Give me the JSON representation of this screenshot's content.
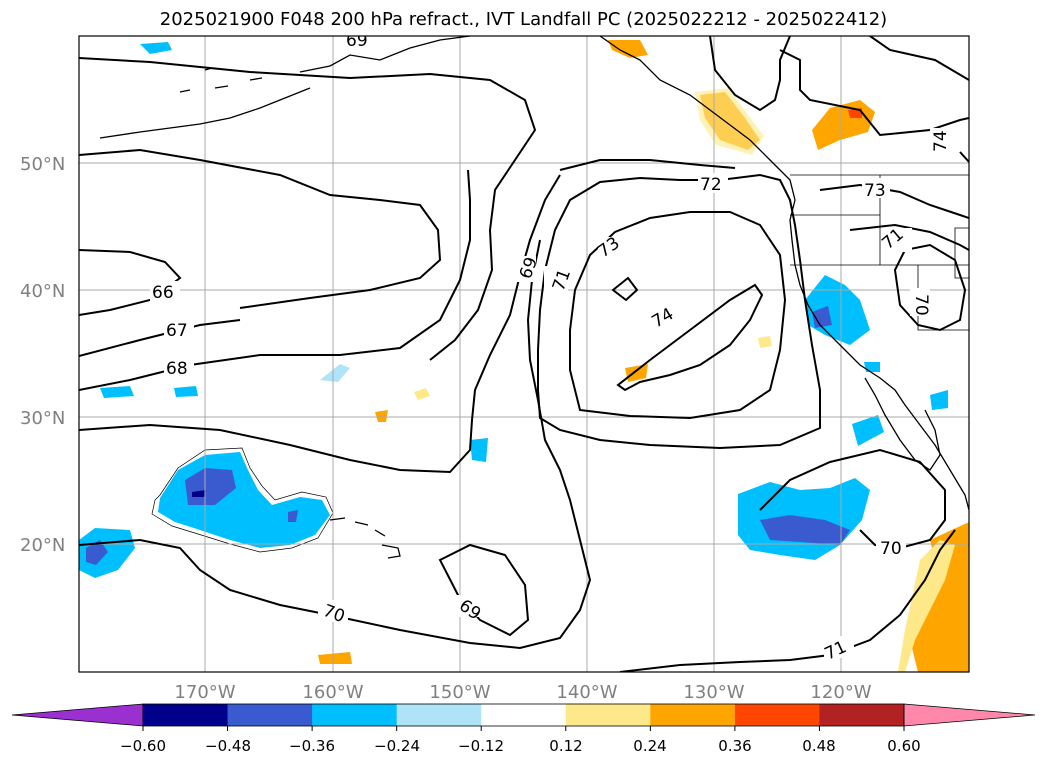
{
  "title": "2025021900 F048 200 hPa refract., IVT Landfall PC (2025022212 - 2025022412)",
  "map": {
    "lat_labels": [
      "50°N",
      "40°N",
      "30°N",
      "20°N"
    ],
    "lon_labels": [
      "170°W",
      "160°W",
      "150°W",
      "140°W",
      "130°W",
      "120°W"
    ],
    "contour_labels": [
      "69",
      "66",
      "67",
      "68",
      "69",
      "71",
      "72",
      "73",
      "73",
      "74",
      "74",
      "71",
      "70",
      "69",
      "70",
      "70",
      "71"
    ],
    "gridline_color": "#a9a9a9",
    "coast_color": "#000000"
  },
  "colorbar": {
    "ticks": [
      "−0.60",
      "−0.48",
      "−0.36",
      "−0.24",
      "−0.12",
      "0.12",
      "0.24",
      "0.36",
      "0.48",
      "0.60"
    ],
    "colors": [
      "#9b30d0",
      "#00008b",
      "#3a5bd0",
      "#00bfff",
      "#aee3f8",
      "#ffffff",
      "#fde98a",
      "#ffa500",
      "#ff4500",
      "#b22222",
      "#ff88aa"
    ]
  }
}
